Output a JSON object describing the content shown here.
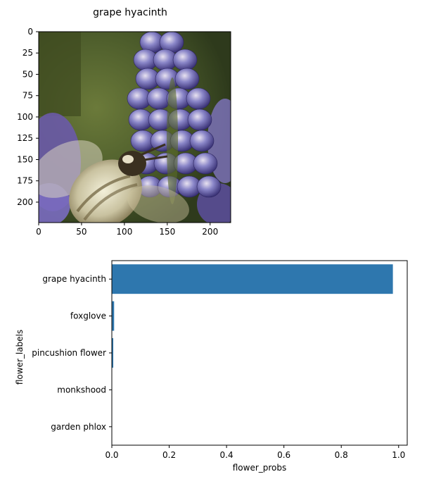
{
  "chart_data": [
    {
      "type": "image",
      "title": "grape hyacinth",
      "image_description": "photo of a bee on a purple grape hyacinth flower",
      "xlim": [
        0,
        224
      ],
      "ylim": [
        224,
        0
      ],
      "xticks": [
        0,
        50,
        100,
        150,
        200
      ],
      "yticks": [
        0,
        25,
        50,
        75,
        100,
        125,
        150,
        175,
        200
      ]
    },
    {
      "type": "bar",
      "orientation": "horizontal",
      "categories": [
        "grape hyacinth",
        "foxglove",
        "pincushion flower",
        "monkshood",
        "garden phlox"
      ],
      "values": [
        0.98,
        0.008,
        0.005,
        0.001,
        0.0005
      ],
      "xlabel": "flower_probs",
      "ylabel": "flower_labels",
      "xlim": [
        0,
        1.03
      ],
      "xticks": [
        0.0,
        0.2,
        0.4,
        0.6,
        0.8,
        1.0
      ],
      "xtick_labels": [
        "0.0",
        "0.2",
        "0.4",
        "0.6",
        "0.8",
        "1.0"
      ],
      "bar_color": "#2e77ae",
      "grid": false,
      "legend": "none"
    }
  ]
}
